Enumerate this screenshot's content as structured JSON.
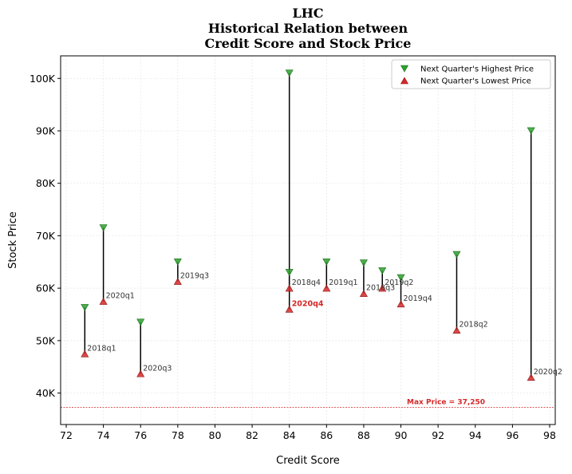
{
  "chart_data": {
    "type": "scatter",
    "title": [
      "LHC",
      "Historical Relation between",
      "Credit Score and Stock Price"
    ],
    "xlabel": "Credit Score",
    "ylabel": "Stock Price",
    "xlim": [
      71.7,
      98.3
    ],
    "ylim": [
      34000,
      104300
    ],
    "x_ticks": [
      72,
      74,
      76,
      78,
      80,
      82,
      84,
      86,
      88,
      90,
      92,
      94,
      96,
      98
    ],
    "y_ticks": [
      {
        "value": 40000,
        "label": "40K"
      },
      {
        "value": 50000,
        "label": "50K"
      },
      {
        "value": 60000,
        "label": "60K"
      },
      {
        "value": 70000,
        "label": "70K"
      },
      {
        "value": 80000,
        "label": "80K"
      },
      {
        "value": 90000,
        "label": "90K"
      },
      {
        "value": 100000,
        "label": "100K"
      }
    ],
    "grid": true,
    "legend_position": "top-right",
    "series": [
      {
        "name": "Next Quarter's Highest Price",
        "color": "#2ca02c",
        "marker": "triangle-down"
      },
      {
        "name": "Next Quarter's Lowest Price",
        "color": "#d62728",
        "marker": "triangle-up"
      }
    ],
    "points": [
      {
        "x": 73,
        "high": 56300,
        "low": 47500,
        "label": "2018q1",
        "highlight": false
      },
      {
        "x": 74,
        "high": 71500,
        "low": 57500,
        "label": "2020q1",
        "highlight": false
      },
      {
        "x": 76,
        "high": 53500,
        "low": 43700,
        "label": "2020q3",
        "highlight": false
      },
      {
        "x": 78,
        "high": 65000,
        "low": 61300,
        "label": "2019q3",
        "highlight": false
      },
      {
        "x": 84,
        "high": 63000,
        "low": 60000,
        "label": "2018q4",
        "highlight": false
      },
      {
        "x": 84,
        "high": 101000,
        "low": 56000,
        "label": "2020q4",
        "highlight": true
      },
      {
        "x": 86,
        "high": 65000,
        "low": 60000,
        "label": "2019q1",
        "highlight": false
      },
      {
        "x": 88,
        "high": 64800,
        "low": 59000,
        "label": "2018q3",
        "highlight": false
      },
      {
        "x": 89,
        "high": 63300,
        "low": 60000,
        "label": "2019q2",
        "highlight": false
      },
      {
        "x": 90,
        "high": 62000,
        "low": 57000,
        "label": "2019q4",
        "highlight": false
      },
      {
        "x": 93,
        "high": 66400,
        "low": 52000,
        "label": "2018q2",
        "highlight": false
      },
      {
        "x": 97,
        "high": 90000,
        "low": 43000,
        "label": "2020q2",
        "highlight": false
      }
    ],
    "reference_line": {
      "value": 37250,
      "label": "Max Price = 37,250",
      "color": "#d62728"
    }
  }
}
